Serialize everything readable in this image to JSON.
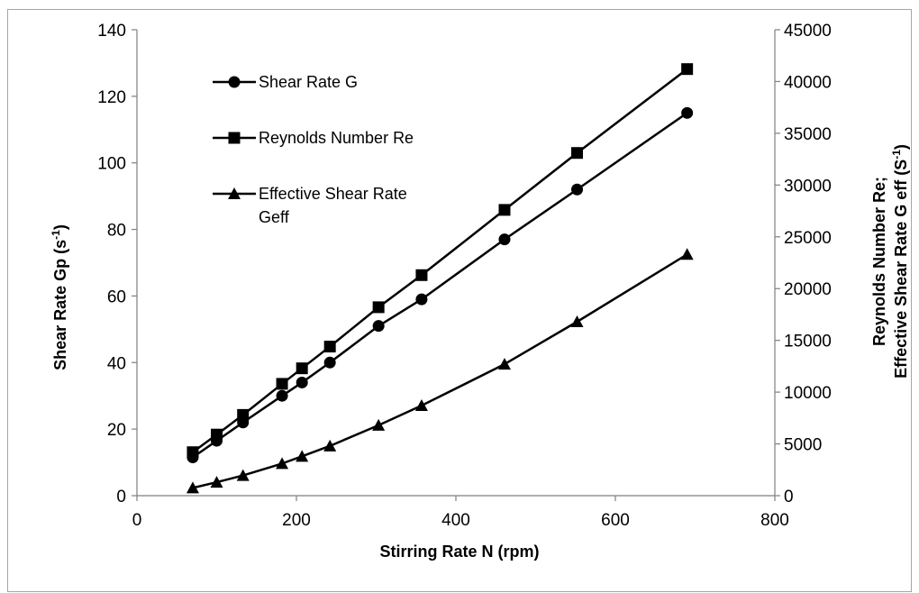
{
  "chart_data": {
    "type": "line",
    "title": "",
    "xlabel": "Stirring Rate N (rpm)",
    "ylabel": {
      "main": "Shear Rate Gp (s",
      "sup": "-1",
      "tail": ")"
    },
    "y2label": {
      "line1": "Reynolds Number Re;",
      "line2_main": "Effective Shear Rate G eff (S",
      "line2_sup": "-1",
      "line2_tail": ")"
    },
    "xlim": [
      0,
      800
    ],
    "ylim": [
      0,
      140
    ],
    "y2lim": [
      0,
      45000
    ],
    "xticks": [
      "0",
      "200",
      "400",
      "600",
      "800"
    ],
    "yticks": [
      "0",
      "20",
      "40",
      "60",
      "80",
      "100",
      "120",
      "140"
    ],
    "y2ticks": [
      "0",
      "5000",
      "10000",
      "15000",
      "20000",
      "25000",
      "30000",
      "35000",
      "40000",
      "45000"
    ],
    "grid": false,
    "legend_position": "top-left",
    "x": [
      70,
      100,
      133,
      182,
      207,
      242,
      303,
      357,
      461,
      552,
      690
    ],
    "series": [
      {
        "name": "Shear Rate G",
        "legend_lines": [
          "Shear Rate G"
        ],
        "marker": "circle",
        "axis": "left",
        "values": [
          11.5,
          16.5,
          22,
          30,
          34,
          40,
          51,
          59,
          77,
          92,
          115
        ]
      },
      {
        "name": "Reynolds Number Re",
        "legend_lines": [
          "Reynolds Number Re"
        ],
        "marker": "square",
        "axis": "right",
        "values": [
          4200,
          5900,
          7800,
          10800,
          12300,
          14400,
          18200,
          21300,
          27600,
          33100,
          41200
        ]
      },
      {
        "name": "Effective Shear Rate Geff",
        "legend_lines": [
          "Effective Shear Rate",
          "Geff"
        ],
        "marker": "triangle",
        "axis": "right",
        "values": [
          750,
          1300,
          1950,
          3100,
          3800,
          4800,
          6800,
          8700,
          12700,
          16800,
          23300
        ]
      }
    ],
    "colors": {
      "line": "#000000",
      "axis": "#7f7f7f",
      "frame": "#a6a6a6"
    }
  }
}
